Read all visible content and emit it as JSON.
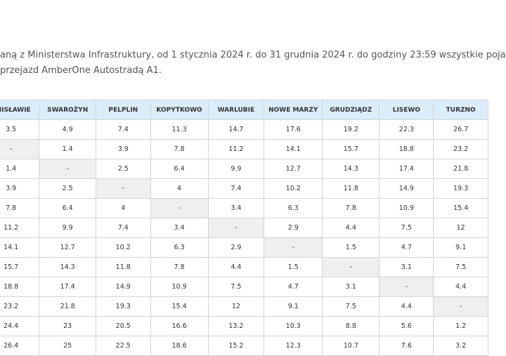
{
  "intro": {
    "line1": "aną z Ministerstwa Infrastruktury, od 1 stycznia 2024 r.  do 31 grudnia 2024 r. do godziny 23:59 wszystkie poja",
    "line2": "przejazd AmberOne Autostradą A1."
  },
  "table": {
    "header": [
      "ANISŁAWIE",
      "SWAROŻYN",
      "PELPLIN",
      "KOPYTKOWO",
      "WARLUBIE",
      "NOWE MARZY",
      "GRUDZIĄDZ",
      "LISEWO",
      "TURZNO"
    ],
    "rows": [
      [
        "3.5",
        "4.9",
        "7.4",
        "11.3",
        "14.7",
        "17.6",
        "19.2",
        "22.3",
        "26.7"
      ],
      [
        "-",
        "1.4",
        "3.9",
        "7.8",
        "11.2",
        "14.1",
        "15.7",
        "18.8",
        "23.2"
      ],
      [
        "1.4",
        "-",
        "2.5",
        "6.4",
        "9.9",
        "12.7",
        "14.3",
        "17.4",
        "21.8"
      ],
      [
        "3.9",
        "2.5",
        "-",
        "4",
        "7.4",
        "10.2",
        "11.8",
        "14.9",
        "19.3"
      ],
      [
        "7.8",
        "6.4",
        "4",
        "-",
        "3.4",
        "6.3",
        "7.8",
        "10.9",
        "15.4"
      ],
      [
        "11.2",
        "9.9",
        "7.4",
        "3.4",
        "-",
        "2.9",
        "4.4",
        "7.5",
        "12"
      ],
      [
        "14.1",
        "12.7",
        "10.2",
        "6.3",
        "2.9",
        "-",
        "1.5",
        "4.7",
        "9.1"
      ],
      [
        "15.7",
        "14.3",
        "11.8",
        "7.8",
        "4.4",
        "1.5",
        "-",
        "3.1",
        "7.5"
      ],
      [
        "18.8",
        "17.4",
        "14.9",
        "10.9",
        "7.5",
        "4.7",
        "3.1",
        "-",
        "4.4"
      ],
      [
        "23.2",
        "21.8",
        "19.3",
        "15.4",
        "12",
        "9.1",
        "7.5",
        "4.4",
        "-"
      ],
      [
        "24.4",
        "23",
        "20.5",
        "16.6",
        "13.2",
        "10.3",
        "8.8",
        "5.6",
        "1.2"
      ],
      [
        "26.4",
        "25",
        "22.5",
        "18.6",
        "15.2",
        "12.3",
        "10.7",
        "7.6",
        "3.2"
      ]
    ]
  }
}
